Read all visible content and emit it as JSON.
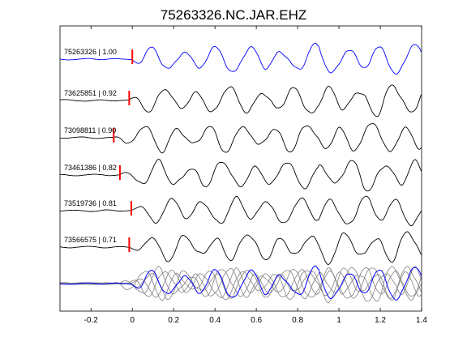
{
  "chart_data": {
    "type": "line",
    "title": "75263326.NC.JAR.EHZ",
    "xlabel": "",
    "ylabel": "",
    "xlim": [
      -0.35,
      1.4
    ],
    "xticks": [
      "-0.2",
      "0",
      "0.2",
      "0.4",
      "0.6",
      "0.8",
      "1",
      "1.2",
      "1.4"
    ],
    "grid": false,
    "traces": [
      {
        "label": "75263326 | 1.00",
        "event_id": "75263326",
        "cc": 1.0,
        "pick_time": 0.0,
        "color": "#0000ff"
      },
      {
        "label": "73625851 | 0.92",
        "event_id": "73625851",
        "cc": 0.92,
        "pick_time": -0.015,
        "color": "#000000"
      },
      {
        "label": "73098811 | 0.90",
        "event_id": "73098811",
        "cc": 0.9,
        "pick_time": -0.09,
        "color": "#000000"
      },
      {
        "label": "73461386 | 0.82",
        "event_id": "73461386",
        "cc": 0.82,
        "pick_time": -0.06,
        "color": "#000000"
      },
      {
        "label": "73519736 | 0.81",
        "event_id": "73519736",
        "cc": 0.81,
        "pick_time": -0.005,
        "color": "#000000"
      },
      {
        "label": "73566575 | 0.71",
        "event_id": "73566575",
        "cc": 0.71,
        "pick_time": -0.015,
        "color": "#000000"
      }
    ],
    "stack": {
      "description": "",
      "reference_color": "#0000ff",
      "others_color": "#808080"
    },
    "pick_marker_color": "#ff0000"
  }
}
